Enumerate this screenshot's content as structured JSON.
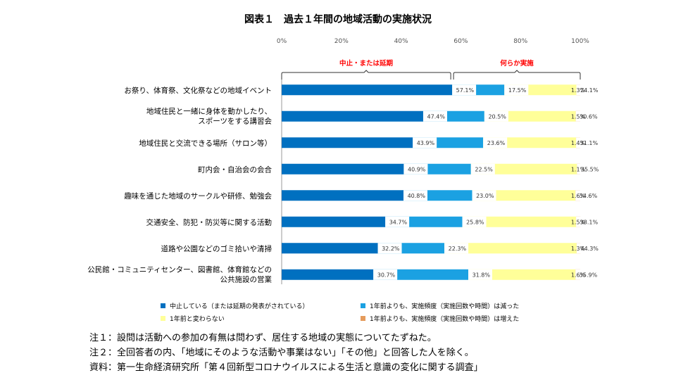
{
  "chart_data": {
    "type": "bar",
    "orientation": "horizontal",
    "stacked": "percent",
    "title": "図表１　過去１年間の地域活動の実施状況",
    "x_axis": {
      "ticks": [
        "0%",
        "20%",
        "40%",
        "60%",
        "80%",
        "100%"
      ],
      "range": [
        0,
        100
      ],
      "position": "top"
    },
    "group_labels": [
      {
        "label": "中止・または延期",
        "range": [
          0,
          57.1
        ],
        "color": "#ff0000"
      },
      {
        "label": "何らか実施",
        "range": [
          57.1,
          100
        ],
        "color": "#ff0000"
      }
    ],
    "categories": [
      {
        "lines": [
          "お祭り、体育祭、文化祭などの地域イベント"
        ]
      },
      {
        "lines": [
          "地域住民と一緒に身体を動かしたり、",
          "スポーツをする講習会"
        ]
      },
      {
        "lines": [
          "地域住民と交流できる場所（サロン等）"
        ]
      },
      {
        "lines": [
          "町内会・自治会の会合"
        ]
      },
      {
        "lines": [
          "趣味を通じた地域のサークルや研修、勉強会"
        ]
      },
      {
        "lines": [
          "交通安全、防犯・防災等に関する活動"
        ]
      },
      {
        "lines": [
          "道路や公園などのゴミ拾いや清掃"
        ]
      },
      {
        "lines": [
          "公民館・コミュニティセンター、図書館、体育館などの",
          "公共施設の営業"
        ]
      }
    ],
    "series": [
      {
        "name": "中止している（または延期の発表がされている）",
        "color": "#0070c0",
        "values": [
          57.1,
          47.4,
          43.9,
          40.9,
          40.8,
          34.7,
          32.2,
          30.7
        ],
        "labels": [
          "57.1%",
          "47.4%",
          "43.9%",
          "40.9%",
          "40.8%",
          "34.7%",
          "32.2%",
          "30.7%"
        ]
      },
      {
        "name": "1年前よりも、実施頻度（実施回数や時間）は減った",
        "color": "#1ba1e2",
        "values": [
          17.5,
          20.5,
          23.6,
          22.5,
          23.0,
          25.8,
          22.3,
          31.8
        ],
        "labels": [
          "17.5%",
          "20.5%",
          "23.6%",
          "22.5%",
          "23.0%",
          "25.8%",
          "22.3%",
          "31.8%"
        ]
      },
      {
        "name": "1年前と変わらない",
        "color": "#ffff99",
        "values": [
          24.1,
          30.6,
          31.1,
          35.5,
          34.6,
          38.1,
          44.3,
          35.9
        ],
        "labels": [
          "24.1%",
          "30.6%",
          "31.1%",
          "35.5%",
          "34.6%",
          "38.1%",
          "44.3%",
          "35.9%"
        ]
      },
      {
        "name": "1年前よりも、実施頻度（実施回数や時間）は増えた",
        "color": "#e59b5c",
        "values": [
          1.3,
          1.5,
          1.4,
          1.1,
          1.6,
          1.5,
          1.3,
          1.6
        ],
        "labels": [
          "1.3%",
          "1.5%",
          "1.4%",
          "1.1%",
          "1.6%",
          "1.5%",
          "1.3%",
          "1.6%"
        ]
      }
    ],
    "legend": {
      "placement": "bottom",
      "columns": 2
    }
  },
  "notes": [
    "注１：設問は活動への参加の有無は問わず、居住する地域の実態についてたずねた。",
    "注２：全回答者の内、「地域にそのような活動や事業はない」「その他」と回答した人を除く。",
    "資料：第一生命経済研究所「第４回新型コロナウイルスによる生活と意識の変化に関する調査」"
  ]
}
